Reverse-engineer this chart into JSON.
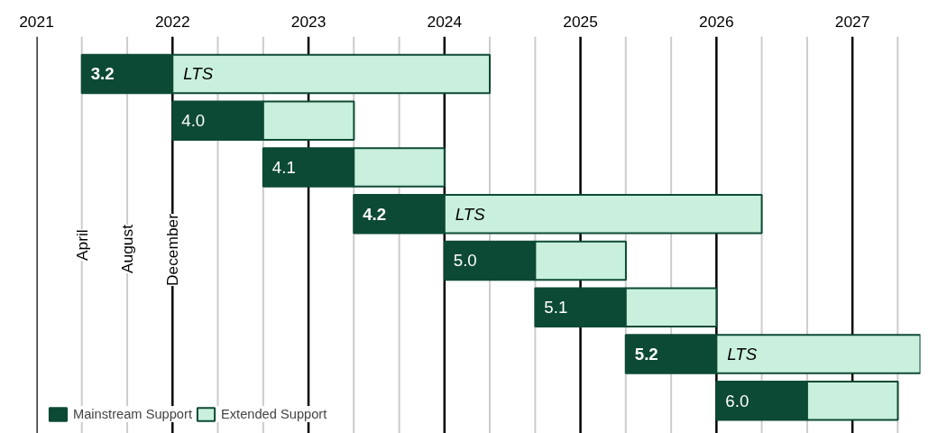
{
  "chart_data": {
    "type": "bar",
    "orientation": "horizontal",
    "categories": [
      "3.2",
      "4.0",
      "4.1",
      "4.2",
      "5.0",
      "5.1",
      "5.2",
      "6.0"
    ],
    "series": [
      {
        "name": "Mainstream Support",
        "color": "#0d4a35",
        "base": [
          2021.333,
          2022.0,
          2022.667,
          2023.333,
          2024.0,
          2024.667,
          2025.333,
          2026.0
        ],
        "values": [
          0.667,
          0.667,
          0.667,
          0.667,
          0.667,
          0.667,
          0.667,
          0.667
        ]
      },
      {
        "name": "Extended Support",
        "color": "#c9f0dd",
        "base": [
          2022.0,
          2022.667,
          2023.333,
          2024.0,
          2024.667,
          2025.333,
          2026.0,
          2026.667
        ],
        "values": [
          2.333,
          0.667,
          0.667,
          2.333,
          0.667,
          0.667,
          1.5,
          0.667
        ],
        "value_labels": [
          "LTS",
          null,
          null,
          "LTS",
          null,
          null,
          "LTS",
          null
        ]
      }
    ],
    "annotations": [
      "April",
      "August",
      "December"
    ],
    "xlim": [
      2021,
      2027.5
    ],
    "xticks": [
      2021,
      {
        "value": 2021.333,
        "label": null
      },
      {
        "value": 2021.667,
        "label": null
      },
      2022,
      {
        "value": 2022.333,
        "label": null
      },
      {
        "value": 2022.667,
        "label": null
      },
      2023,
      {
        "value": 2023.333,
        "label": null
      },
      {
        "value": 2023.667,
        "label": null
      },
      2024,
      {
        "value": 2024.333,
        "label": null
      },
      {
        "value": 2024.667,
        "label": null
      },
      2025,
      {
        "value": 2025.333,
        "label": null
      },
      {
        "value": 2025.667,
        "label": null
      },
      2026,
      {
        "value": 2026.333,
        "label": null
      },
      {
        "value": 2026.667,
        "label": null
      },
      2027,
      {
        "value": 2027.333,
        "label": null
      }
    ],
    "grid": "x",
    "legend": "bottom left",
    "tick_labels": "x"
  }
}
